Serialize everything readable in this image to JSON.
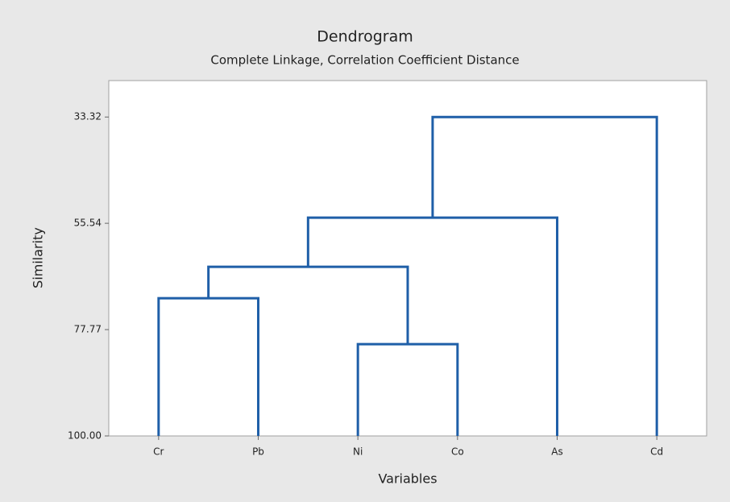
{
  "chart_data": {
    "type": "dendrogram",
    "title": "Dendrogram",
    "subtitle": "Complete Linkage, Correlation Coefficient Distance",
    "xlabel": "Variables",
    "ylabel": "Similarity",
    "categories": [
      "Cr",
      "Pb",
      "Ni",
      "Co",
      "As",
      "Cd"
    ],
    "merges": [
      {
        "join": [
          2,
          3
        ],
        "value": 80.81
      },
      {
        "join": [
          0,
          1
        ],
        "value": 71.21
      },
      {
        "join": [
          7,
          6
        ],
        "value": 64.64
      },
      {
        "join": [
          8,
          4
        ],
        "value": 54.37
      },
      {
        "join": [
          9,
          5
        ],
        "value": 33.32
      }
    ],
    "color": "#1f5fa8",
    "ylim": [
      100,
      25.7
    ],
    "yticks": [
      33.32,
      55.54,
      77.77,
      {
        "value": 100,
        "label": "100.00"
      }
    ]
  }
}
